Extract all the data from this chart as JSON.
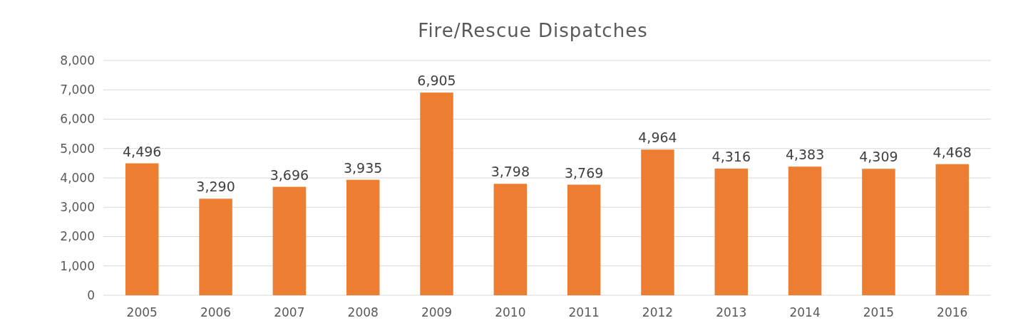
{
  "chart_data": {
    "type": "bar",
    "title": "Fire/Rescue Dispatches",
    "categories": [
      "2005",
      "2006",
      "2007",
      "2008",
      "2009",
      "2010",
      "2011",
      "2012",
      "2013",
      "2014",
      "2015",
      "2016"
    ],
    "values": [
      4496,
      3290,
      3696,
      3935,
      6905,
      3798,
      3769,
      4964,
      4316,
      4383,
      4309,
      4468
    ],
    "color": "#ed7d31",
    "ylim": [
      0,
      8000
    ],
    "yticks": [
      {
        "value": 0,
        "label": "0"
      },
      {
        "value": 1000,
        "label": "1,000"
      },
      {
        "value": 2000,
        "label": "2,000"
      },
      {
        "value": 3000,
        "label": "3,000"
      },
      {
        "value": 4000,
        "label": "4,000"
      },
      {
        "value": 5000,
        "label": "5,000"
      },
      {
        "value": 6000,
        "label": "6,000"
      },
      {
        "value": 7000,
        "label": "7,000"
      },
      {
        "value": 8000,
        "label": "8,000"
      }
    ],
    "value_labels": [
      "4,496",
      "3,290",
      "3,696",
      "3,935",
      "6,905",
      "3,798",
      "3,769",
      "4,964",
      "4,316",
      "4,383",
      "4,309",
      "4,468"
    ],
    "grid": "y"
  }
}
